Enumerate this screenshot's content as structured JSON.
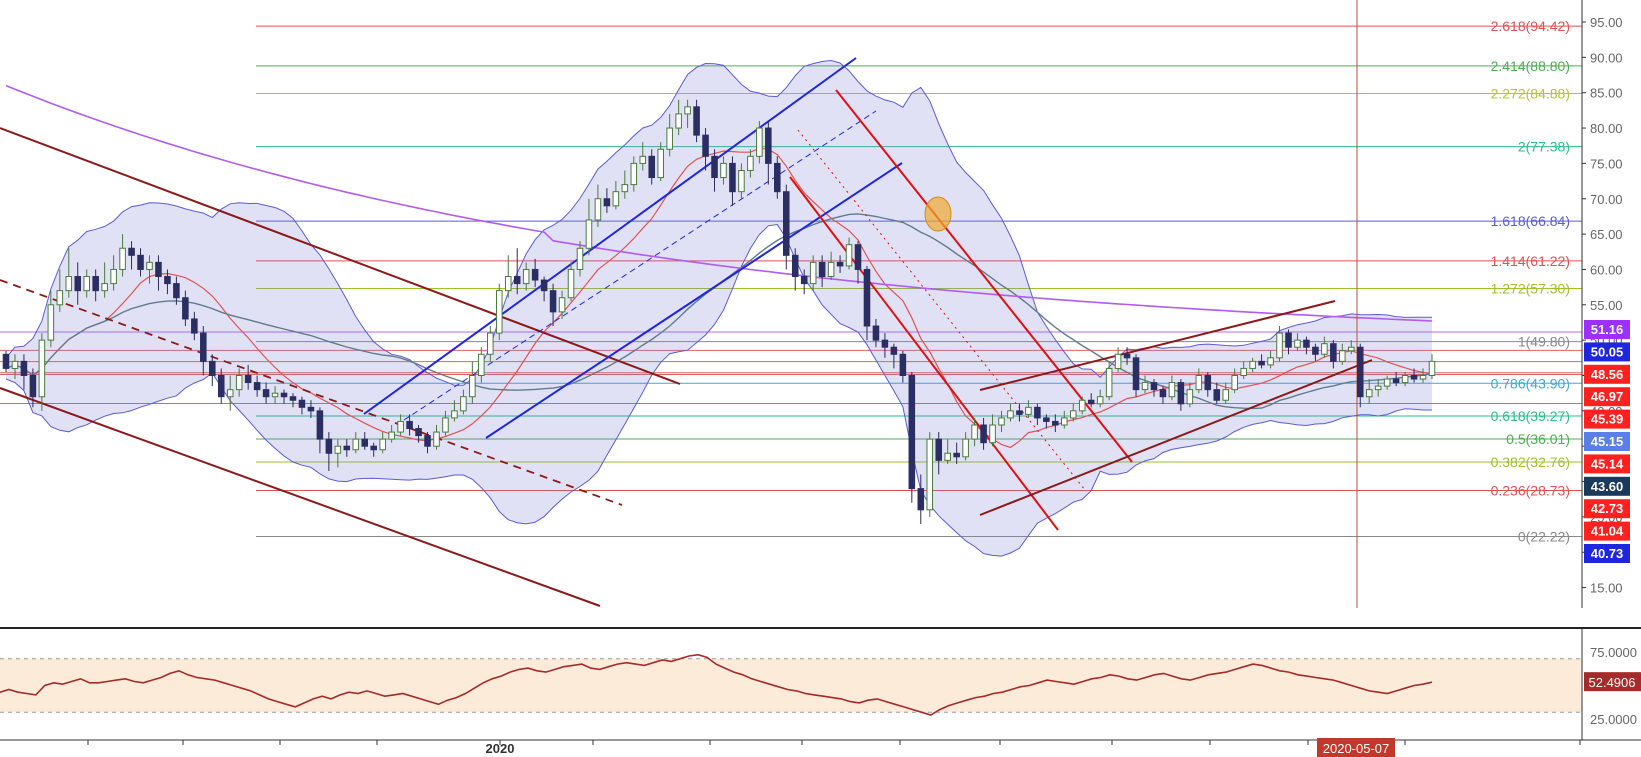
{
  "chart_data": [
    {
      "type": "candlestick",
      "price_axis": {
        "ticks": [
          "95.00",
          "90.00",
          "85.00",
          "80.00",
          "75.00",
          "70.00",
          "65.00",
          "60.00",
          "55.00",
          "50.00",
          "45.00",
          "40.00",
          "35.00",
          "30.00",
          "25.00",
          "20.00",
          "15.00"
        ],
        "tick_values": [
          95,
          90,
          85,
          80,
          75,
          70,
          65,
          60,
          55,
          50,
          45,
          40,
          35,
          30,
          25,
          20,
          15
        ],
        "ylim": [
          12,
          97
        ]
      },
      "time_axis": {
        "labels": [
          "2020"
        ],
        "highlight_label": "2020-05-07"
      },
      "fib_levels": [
        {
          "label": "2.618(94.42)",
          "value": 94.42,
          "color": "#e05252"
        },
        {
          "label": "2.414(88.80)",
          "value": 88.8,
          "color": "#4caf50"
        },
        {
          "label": "2.272(84.88)",
          "value": 84.88,
          "color": "#b5c62c"
        },
        {
          "label": "2(77.38)",
          "value": 77.38,
          "color": "#2bbd8e"
        },
        {
          "label": "1.618(66.84)",
          "value": 66.84,
          "color": "#5b5bd6"
        },
        {
          "label": "1.414(61.22)",
          "value": 61.22,
          "color": "#e05252"
        },
        {
          "label": "1.272(57.30)",
          "value": 57.3,
          "color": "#9fc12c"
        },
        {
          "label": "1(49.80)",
          "value": 49.8,
          "color": "#8a8a8a"
        },
        {
          "label": "0.786(43.90)",
          "value": 43.9,
          "color": "#3fa9d8"
        },
        {
          "label": "0.618(39.27)",
          "value": 39.27,
          "color": "#2bbd8e"
        },
        {
          "label": "0.5(36.01)",
          "value": 36.01,
          "color": "#4caf50"
        },
        {
          "label": "0.382(32.76)",
          "value": 32.76,
          "color": "#9fc12c"
        },
        {
          "label": "0.236(28.73)",
          "value": 28.73,
          "color": "#e05252"
        },
        {
          "label": "0(22.22)",
          "value": 22.22,
          "color": "#8a8a8a"
        }
      ],
      "price_tags": [
        {
          "label": "51.16",
          "bg": "#9b30ff"
        },
        {
          "label": "50.05",
          "bg": "#1f26e0"
        },
        {
          "label": "48.56",
          "bg": "#ff2020"
        },
        {
          "label": "46.97",
          "bg": "#ff2020"
        },
        {
          "label": "45.39",
          "bg": "#ff2020"
        },
        {
          "label": "45.15",
          "bg": "#5b7fe8"
        },
        {
          "label": "45.14",
          "bg": "#ff2020"
        },
        {
          "label": "43.60",
          "bg": "#1a3a5c"
        },
        {
          "label": "42.73",
          "bg": "#ff2020"
        },
        {
          "label": "41.04",
          "bg": "#ff2020"
        },
        {
          "label": "40.73",
          "bg": "#1f26e0"
        }
      ],
      "candles": [
        [
          48.0,
          46.0,
          48.5,
          45.5
        ],
        [
          46.0,
          47.0,
          48.0,
          44.5
        ],
        [
          47.0,
          45.0,
          48.0,
          43.0
        ],
        [
          45.0,
          42.0,
          46.0,
          40.5
        ],
        [
          42.0,
          50.0,
          51.0,
          40.0
        ],
        [
          50.0,
          55.0,
          57.0,
          49.0
        ],
        [
          55.0,
          57.0,
          60.0,
          54.0
        ],
        [
          57.0,
          59.0,
          63.0,
          56.0
        ],
        [
          59.0,
          57.0,
          61.0,
          55.0
        ],
        [
          57.0,
          59.0,
          60.0,
          56.0
        ],
        [
          59.0,
          57.0,
          60.0,
          55.5
        ],
        [
          57.0,
          58.0,
          61.0,
          56.0
        ],
        [
          58.0,
          60.0,
          62.0,
          57.0
        ],
        [
          60.0,
          63.0,
          65.0,
          59.0
        ],
        [
          63.0,
          62.0,
          64.0,
          60.0
        ],
        [
          62.0,
          60.0,
          63.0,
          59.0
        ],
        [
          60.0,
          61.0,
          62.0,
          58.0
        ],
        [
          61.0,
          59.0,
          62.0,
          57.0
        ],
        [
          59.0,
          58.0,
          60.0,
          56.5
        ],
        [
          58.0,
          56.0,
          59.0,
          55.0
        ],
        [
          56.0,
          53.0,
          57.0,
          52.0
        ],
        [
          53.0,
          51.0,
          54.0,
          50.0
        ],
        [
          51.0,
          47.0,
          52.0,
          45.0
        ],
        [
          47.0,
          45.0,
          48.0,
          43.5
        ],
        [
          45.0,
          42.0,
          46.0,
          41.0
        ],
        [
          42.0,
          43.0,
          45.0,
          40.0
        ],
        [
          43.0,
          45.0,
          46.0,
          42.0
        ],
        [
          45.0,
          44.0,
          46.5,
          43.0
        ],
        [
          44.0,
          43.0,
          45.0,
          42.0
        ],
        [
          43.0,
          42.0,
          44.0,
          41.0
        ],
        [
          42.0,
          42.5,
          43.5,
          41.0
        ],
        [
          42.5,
          42.0,
          43.0,
          41.0
        ],
        [
          42.0,
          41.5,
          42.5,
          40.5
        ],
        [
          41.5,
          40.5,
          42.0,
          39.5
        ],
        [
          40.5,
          40.0,
          41.5,
          39.0
        ],
        [
          40.0,
          36.0,
          40.5,
          34.0
        ],
        [
          36.0,
          34.0,
          37.0,
          31.5
        ],
        [
          34.0,
          35.0,
          36.0,
          32.0
        ],
        [
          35.0,
          34.5,
          36.0,
          33.5
        ],
        [
          34.5,
          36.0,
          37.0,
          34.0
        ],
        [
          36.0,
          35.0,
          37.0,
          34.5
        ],
        [
          35.0,
          34.5,
          35.5,
          33.5
        ],
        [
          34.5,
          36.0,
          37.0,
          34.0
        ],
        [
          36.0,
          37.0,
          38.0,
          35.5
        ],
        [
          37.0,
          38.5,
          39.5,
          36.5
        ],
        [
          38.5,
          37.5,
          39.5,
          36.5
        ],
        [
          37.5,
          36.5,
          38.0,
          35.5
        ],
        [
          36.5,
          35.0,
          37.0,
          34.0
        ],
        [
          35.0,
          37.0,
          38.0,
          34.5
        ],
        [
          37.0,
          39.0,
          40.0,
          36.5
        ],
        [
          39.0,
          40.0,
          41.5,
          38.5
        ],
        [
          40.0,
          42.0,
          43.0,
          39.5
        ],
        [
          42.0,
          45.0,
          47.0,
          41.0
        ],
        [
          45.0,
          48.0,
          49.0,
          44.0
        ],
        [
          48.0,
          51.0,
          52.0,
          47.0
        ],
        [
          51.0,
          57.0,
          58.0,
          50.0
        ],
        [
          57.0,
          59.0,
          62.0,
          56.0
        ],
        [
          59.0,
          58.0,
          63.0,
          56.5
        ],
        [
          58.0,
          60.0,
          61.0,
          57.0
        ],
        [
          60.0,
          58.5,
          61.5,
          57.5
        ],
        [
          58.5,
          57.0,
          59.0,
          55.5
        ],
        [
          57.0,
          54.0,
          58.0,
          52.0
        ],
        [
          54.0,
          56.0,
          57.0,
          53.0
        ],
        [
          56.0,
          60.0,
          61.0,
          55.5
        ],
        [
          60.0,
          63.0,
          64.0,
          59.0
        ],
        [
          63.0,
          67.0,
          70.0,
          62.0
        ],
        [
          67.0,
          70.0,
          72.0,
          66.0
        ],
        [
          70.0,
          69.0,
          71.5,
          68.0
        ],
        [
          69.0,
          71.0,
          72.5,
          68.5
        ],
        [
          71.0,
          72.0,
          74.0,
          70.0
        ],
        [
          72.0,
          75.0,
          76.0,
          71.0
        ],
        [
          75.0,
          76.0,
          78.0,
          74.0
        ],
        [
          76.0,
          73.0,
          77.0,
          72.0
        ],
        [
          73.0,
          77.0,
          78.0,
          72.5
        ],
        [
          77.0,
          80.0,
          82.0,
          76.0
        ],
        [
          80.0,
          82.0,
          84.0,
          79.0
        ],
        [
          82.0,
          83.0,
          84.0,
          80.0
        ],
        [
          83.0,
          79.0,
          84.0,
          78.0
        ],
        [
          79.0,
          76.0,
          80.0,
          74.0
        ],
        [
          76.0,
          73.0,
          77.0,
          71.0
        ],
        [
          73.0,
          75.0,
          76.0,
          72.0
        ],
        [
          75.0,
          71.0,
          76.0,
          69.0
        ],
        [
          71.0,
          74.0,
          75.0,
          70.0
        ],
        [
          74.0,
          76.0,
          77.0,
          73.0
        ],
        [
          76.0,
          80.0,
          81.0,
          75.0
        ],
        [
          80.0,
          75.0,
          81.0,
          72.0
        ],
        [
          75.0,
          71.0,
          76.0,
          70.0
        ],
        [
          71.0,
          62.0,
          72.0,
          60.0
        ],
        [
          62.0,
          59.0,
          63.0,
          57.0
        ],
        [
          59.0,
          58.0,
          60.0,
          56.5
        ],
        [
          58.0,
          61.0,
          62.0,
          57.0
        ],
        [
          61.0,
          59.0,
          62.0,
          57.5
        ],
        [
          59.0,
          61.0,
          62.5,
          58.5
        ],
        [
          61.0,
          60.5,
          62.0,
          59.5
        ],
        [
          60.5,
          63.5,
          64.5,
          60.0
        ],
        [
          63.5,
          60.0,
          64.0,
          58.0
        ],
        [
          60.0,
          52.0,
          60.5,
          50.0
        ],
        [
          52.0,
          50.0,
          53.0,
          49.0
        ],
        [
          50.0,
          49.0,
          51.0,
          47.5
        ],
        [
          49.0,
          48.0,
          49.5,
          46.0
        ],
        [
          48.0,
          45.0,
          48.5,
          44.0
        ],
        [
          45.0,
          29.0,
          45.5,
          27.0
        ],
        [
          29.0,
          26.0,
          31.0,
          24.0
        ],
        [
          26.0,
          36.0,
          37.0,
          25.0
        ],
        [
          36.0,
          33.0,
          37.0,
          31.0
        ],
        [
          33.0,
          34.0,
          36.0,
          32.5
        ],
        [
          34.0,
          33.5,
          35.5,
          32.5
        ],
        [
          33.5,
          36.0,
          37.0,
          33.0
        ],
        [
          36.0,
          38.0,
          39.0,
          35.0
        ],
        [
          38.0,
          35.5,
          39.0,
          34.5
        ],
        [
          35.5,
          38.0,
          39.5,
          35.0
        ],
        [
          38.0,
          39.0,
          40.0,
          37.0
        ],
        [
          39.0,
          40.0,
          41.0,
          38.5
        ],
        [
          40.0,
          39.5,
          41.0,
          38.5
        ],
        [
          39.5,
          40.5,
          41.5,
          39.0
        ],
        [
          40.5,
          39.0,
          41.0,
          38.0
        ],
        [
          39.0,
          38.5,
          39.5,
          37.5
        ],
        [
          38.5,
          38.0,
          39.5,
          37.0
        ],
        [
          38.0,
          39.0,
          40.0,
          37.5
        ],
        [
          39.0,
          40.0,
          41.0,
          38.5
        ],
        [
          40.0,
          41.5,
          42.0,
          39.5
        ],
        [
          41.5,
          41.0,
          42.5,
          40.5
        ],
        [
          41.0,
          42.0,
          43.0,
          40.5
        ],
        [
          42.0,
          46.0,
          47.0,
          41.5
        ],
        [
          46.0,
          48.0,
          49.0,
          45.5
        ],
        [
          48.0,
          47.5,
          49.0,
          46.5
        ],
        [
          47.5,
          43.0,
          48.0,
          42.0
        ],
        [
          43.0,
          44.0,
          45.0,
          42.5
        ],
        [
          44.0,
          43.0,
          44.5,
          42.0
        ],
        [
          43.0,
          42.0,
          43.5,
          41.0
        ],
        [
          42.0,
          44.0,
          45.0,
          41.5
        ],
        [
          44.0,
          41.0,
          44.5,
          40.0
        ],
        [
          41.0,
          43.0,
          44.0,
          40.5
        ],
        [
          43.0,
          45.0,
          46.0,
          42.5
        ],
        [
          45.0,
          43.0,
          45.5,
          42.0
        ],
        [
          43.0,
          41.5,
          44.0,
          41.0
        ],
        [
          41.5,
          43.0,
          44.0,
          41.0
        ],
        [
          43.0,
          45.0,
          46.0,
          42.5
        ],
        [
          45.0,
          46.0,
          47.0,
          44.5
        ],
        [
          46.0,
          47.0,
          47.5,
          45.5
        ],
        [
          47.0,
          46.5,
          48.0,
          46.0
        ],
        [
          46.5,
          47.5,
          48.5,
          46.0
        ],
        [
          47.5,
          51.0,
          52.0,
          47.0
        ],
        [
          51.0,
          49.0,
          51.5,
          48.0
        ],
        [
          49.0,
          50.0,
          51.0,
          48.5
        ],
        [
          50.0,
          49.0,
          50.5,
          48.0
        ],
        [
          49.0,
          48.0,
          49.5,
          47.0
        ],
        [
          48.0,
          49.5,
          50.5,
          47.5
        ],
        [
          49.5,
          47.0,
          50.0,
          46.0
        ],
        [
          47.0,
          48.5,
          49.5,
          46.5
        ],
        [
          48.5,
          49.0,
          50.0,
          48.0
        ],
        [
          49.0,
          42.0,
          49.5,
          40.5
        ],
        [
          42.0,
          43.0,
          44.5,
          41.0
        ],
        [
          43.0,
          43.5,
          44.5,
          42.0
        ],
        [
          43.5,
          44.5,
          45.0,
          43.0
        ],
        [
          44.5,
          44.0,
          45.5,
          43.5
        ],
        [
          44.0,
          45.0,
          45.5,
          43.5
        ],
        [
          45.0,
          44.5,
          46.0,
          44.0
        ],
        [
          44.5,
          45.0,
          46.0,
          44.0
        ],
        [
          45.0,
          47.0,
          48.0,
          44.5
        ]
      ],
      "indicators": [
        {
          "name": "Bollinger Bands",
          "color": "#5b5bd6"
        },
        {
          "name": "Moving Average (short)",
          "color": "#e05252"
        },
        {
          "name": "Moving Average (medium)",
          "color": "#5f7d8c"
        },
        {
          "name": "Moving Average (long)",
          "color": "#b05cf0"
        }
      ]
    },
    {
      "type": "line",
      "panel": "oscillator",
      "value_label": "52.4906",
      "ticks": [
        "75.0000",
        "25.0000"
      ],
      "tick_values": [
        75,
        25
      ],
      "band": [
        30,
        70
      ],
      "color": "#a52a2a",
      "values": [
        45,
        47,
        45,
        44,
        43,
        50,
        52,
        51,
        53,
        55,
        52,
        52,
        53,
        54,
        55,
        53,
        52,
        54,
        56,
        59,
        61,
        58,
        56,
        55,
        54,
        52,
        50,
        48,
        46,
        43,
        40,
        38,
        36,
        34,
        37,
        40,
        42,
        40,
        43,
        45,
        44,
        46,
        44,
        42,
        43,
        44,
        42,
        40,
        38,
        36,
        39,
        41,
        44,
        48,
        52,
        55,
        57,
        60,
        62,
        63,
        61,
        60,
        62,
        64,
        65,
        66,
        63,
        62,
        64,
        66,
        67,
        66,
        65,
        67,
        69,
        68,
        70,
        72,
        73,
        71,
        66,
        63,
        60,
        58,
        55,
        53,
        51,
        49,
        47,
        46,
        44,
        43,
        42,
        41,
        40,
        38,
        37,
        39,
        40,
        38,
        36,
        34,
        32,
        30,
        28,
        32,
        35,
        37,
        39,
        41,
        42,
        44,
        45,
        47,
        49,
        50,
        52,
        54,
        53,
        52,
        51,
        53,
        55,
        56,
        58,
        57,
        55,
        54,
        56,
        58,
        59,
        57,
        55,
        54,
        56,
        58,
        59,
        60,
        62,
        64,
        66,
        65,
        63,
        61,
        60,
        58,
        57,
        56,
        55,
        54,
        52,
        50,
        48,
        46,
        45,
        44,
        46,
        48,
        50,
        51,
        52.49
      ]
    }
  ]
}
